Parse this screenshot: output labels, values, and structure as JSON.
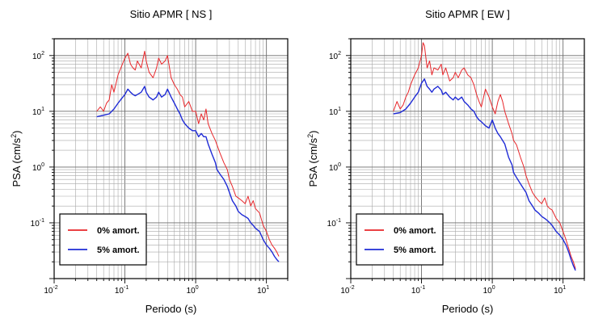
{
  "chart_data": [
    {
      "type": "line",
      "title": "Sitio APMR [ NS ]",
      "xlabel": "Periodo (s)",
      "ylabel": "PSA (cm/s",
      "ylabel_sup": "2",
      "ylabel_end": ")",
      "xscale": "log",
      "yscale": "log",
      "xlim": [
        0.01,
        20
      ],
      "ylim": [
        0.01,
        200
      ],
      "grid": true,
      "legend": "bottom-left",
      "x_ticks": [
        {
          "base": "10",
          "exp": "-2"
        },
        {
          "base": "10",
          "exp": "-1"
        },
        {
          "base": "10",
          "exp": "0"
        },
        {
          "base": "10",
          "exp": "1"
        }
      ],
      "y_ticks": [
        {
          "base": "10",
          "exp": "-1"
        },
        {
          "base": "10",
          "exp": "0"
        },
        {
          "base": "10",
          "exp": "1"
        },
        {
          "base": "10",
          "exp": "2"
        }
      ],
      "series": [
        {
          "name": "0% amort.",
          "color": "#e8262a",
          "x": [
            0.04,
            0.045,
            0.05,
            0.055,
            0.06,
            0.065,
            0.07,
            0.08,
            0.09,
            0.1,
            0.11,
            0.12,
            0.13,
            0.14,
            0.15,
            0.17,
            0.19,
            0.2,
            0.22,
            0.25,
            0.28,
            0.3,
            0.33,
            0.37,
            0.4,
            0.45,
            0.5,
            0.55,
            0.6,
            0.65,
            0.7,
            0.8,
            0.9,
            1.0,
            1.1,
            1.2,
            1.3,
            1.4,
            1.5,
            1.7,
            1.9,
            2.0,
            2.2,
            2.5,
            2.8,
            3.0,
            3.3,
            3.7,
            4.0,
            4.5,
            5.0,
            5.5,
            6.0,
            6.5,
            7.0,
            8.0,
            9.0,
            10.0,
            11.0,
            12.0,
            13.0,
            14.0,
            15.0
          ],
          "y": [
            10,
            12,
            10,
            14,
            16,
            30,
            22,
            45,
            65,
            90,
            110,
            70,
            60,
            55,
            80,
            60,
            120,
            80,
            50,
            40,
            60,
            90,
            70,
            80,
            100,
            40,
            30,
            25,
            20,
            18,
            12,
            15,
            10,
            10,
            6,
            9,
            7,
            11,
            6,
            4,
            3,
            2.5,
            1.8,
            1.2,
            0.9,
            0.6,
            0.45,
            0.3,
            0.28,
            0.25,
            0.22,
            0.3,
            0.2,
            0.25,
            0.18,
            0.15,
            0.09,
            0.07,
            0.05,
            0.04,
            0.035,
            0.03,
            0.025
          ]
        },
        {
          "name": "5% amort.",
          "color": "#1f2bd6",
          "x": [
            0.04,
            0.05,
            0.06,
            0.07,
            0.08,
            0.09,
            0.1,
            0.11,
            0.12,
            0.13,
            0.14,
            0.15,
            0.17,
            0.19,
            0.2,
            0.22,
            0.25,
            0.28,
            0.3,
            0.33,
            0.37,
            0.4,
            0.45,
            0.5,
            0.55,
            0.6,
            0.65,
            0.7,
            0.8,
            0.9,
            1.0,
            1.1,
            1.2,
            1.3,
            1.4,
            1.5,
            1.7,
            1.9,
            2.0,
            2.2,
            2.5,
            2.8,
            3.0,
            3.3,
            3.7,
            4.0,
            4.5,
            5.0,
            5.5,
            6.0,
            6.5,
            7.0,
            8.0,
            9.0,
            10.0,
            11.0,
            12.0,
            13.0,
            14.0,
            15.0
          ],
          "y": [
            8,
            8.5,
            9,
            11,
            14,
            17,
            20,
            25,
            22,
            20,
            19,
            20,
            22,
            28,
            22,
            18,
            16,
            18,
            22,
            18,
            20,
            25,
            18,
            14,
            11,
            9,
            7,
            6,
            5,
            4.5,
            4.5,
            3.5,
            4,
            3.5,
            3.5,
            2.6,
            1.7,
            1.2,
            0.9,
            0.75,
            0.6,
            0.45,
            0.35,
            0.25,
            0.2,
            0.16,
            0.14,
            0.13,
            0.12,
            0.1,
            0.09,
            0.08,
            0.07,
            0.05,
            0.04,
            0.035,
            0.03,
            0.025,
            0.022,
            0.02
          ]
        }
      ]
    },
    {
      "type": "line",
      "title": "Sitio APMR [ EW ]",
      "xlabel": "Periodo (s)",
      "ylabel": "PSA (cm/s",
      "ylabel_sup": "2",
      "ylabel_end": ")",
      "xscale": "log",
      "yscale": "log",
      "xlim": [
        0.01,
        20
      ],
      "ylim": [
        0.01,
        200
      ],
      "grid": true,
      "legend": "bottom-left",
      "x_ticks": [
        {
          "base": "10",
          "exp": "-2"
        },
        {
          "base": "10",
          "exp": "-1"
        },
        {
          "base": "10",
          "exp": "0"
        },
        {
          "base": "10",
          "exp": "1"
        }
      ],
      "y_ticks": [
        {
          "base": "10",
          "exp": "-1"
        },
        {
          "base": "10",
          "exp": "0"
        },
        {
          "base": "10",
          "exp": "1"
        },
        {
          "base": "10",
          "exp": "2"
        }
      ],
      "series": [
        {
          "name": "0% amort.",
          "color": "#e8262a",
          "x": [
            0.04,
            0.045,
            0.05,
            0.055,
            0.06,
            0.065,
            0.07,
            0.08,
            0.09,
            0.1,
            0.105,
            0.11,
            0.12,
            0.13,
            0.14,
            0.15,
            0.17,
            0.19,
            0.2,
            0.22,
            0.25,
            0.28,
            0.3,
            0.33,
            0.37,
            0.4,
            0.45,
            0.5,
            0.55,
            0.6,
            0.65,
            0.7,
            0.8,
            0.9,
            1.0,
            1.1,
            1.2,
            1.3,
            1.4,
            1.5,
            1.7,
            1.9,
            2.0,
            2.2,
            2.5,
            2.8,
            3.0,
            3.3,
            3.7,
            4.0,
            4.5,
            5.0,
            5.5,
            6.0,
            6.5,
            7.0,
            8.0,
            9.0,
            10.0,
            11.0,
            12.0,
            13.0,
            14.0,
            15.0
          ],
          "y": [
            10,
            15,
            11,
            13,
            18,
            22,
            30,
            45,
            60,
            100,
            170,
            150,
            60,
            80,
            45,
            60,
            55,
            70,
            45,
            60,
            35,
            40,
            50,
            40,
            55,
            60,
            45,
            40,
            30,
            20,
            15,
            12,
            25,
            18,
            12,
            9,
            15,
            20,
            15,
            10,
            6,
            4,
            3,
            2.5,
            1.5,
            1.0,
            0.7,
            0.5,
            0.35,
            0.3,
            0.25,
            0.22,
            0.28,
            0.2,
            0.18,
            0.17,
            0.12,
            0.1,
            0.07,
            0.05,
            0.035,
            0.025,
            0.02,
            0.015
          ]
        },
        {
          "name": "5% amort.",
          "color": "#1f2bd6",
          "x": [
            0.04,
            0.05,
            0.06,
            0.07,
            0.08,
            0.09,
            0.1,
            0.11,
            0.12,
            0.13,
            0.14,
            0.15,
            0.17,
            0.19,
            0.2,
            0.22,
            0.25,
            0.28,
            0.3,
            0.33,
            0.37,
            0.4,
            0.45,
            0.5,
            0.55,
            0.6,
            0.65,
            0.7,
            0.8,
            0.9,
            1.0,
            1.1,
            1.2,
            1.3,
            1.4,
            1.5,
            1.7,
            1.9,
            2.0,
            2.2,
            2.5,
            2.8,
            3.0,
            3.3,
            3.7,
            4.0,
            4.5,
            5.0,
            5.5,
            6.0,
            6.5,
            7.0,
            8.0,
            9.0,
            10.0,
            11.0,
            12.0,
            13.0,
            14.0,
            15.0
          ],
          "y": [
            9,
            9.5,
            11,
            14,
            18,
            22,
            32,
            38,
            28,
            25,
            22,
            25,
            28,
            24,
            20,
            22,
            18,
            16,
            18,
            16,
            18,
            15,
            13,
            11,
            10,
            8,
            7,
            6.5,
            5.5,
            5,
            7,
            5,
            4,
            3.5,
            3,
            2.6,
            1.5,
            1.1,
            0.8,
            0.65,
            0.5,
            0.4,
            0.35,
            0.25,
            0.2,
            0.17,
            0.15,
            0.13,
            0.12,
            0.11,
            0.1,
            0.09,
            0.07,
            0.06,
            0.05,
            0.04,
            0.03,
            0.022,
            0.017,
            0.014
          ]
        }
      ]
    }
  ]
}
